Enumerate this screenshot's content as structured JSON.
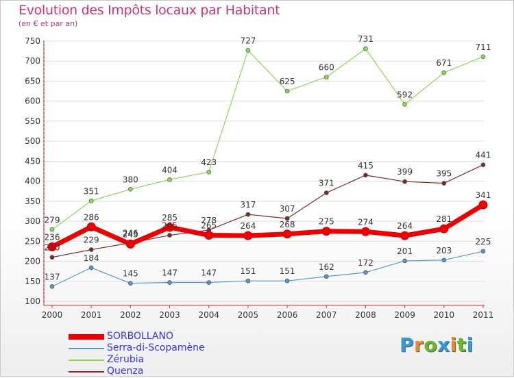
{
  "title": "Evolution des Impôts locaux par Habitant",
  "subtitle": "(en € et par an)",
  "logo": {
    "text": "Proxiti",
    "letter_colors": [
      "#3399dd",
      "#ee8822",
      "#66bb22",
      "#3399dd",
      "#ee8822",
      "#66bb22",
      "#3399dd"
    ]
  },
  "chart_data": {
    "type": "line",
    "x": [
      "2000",
      "2001",
      "2002",
      "2003",
      "2004",
      "2005",
      "2006",
      "2007",
      "2008",
      "2009",
      "2010",
      "2011"
    ],
    "ylim": [
      100,
      750
    ],
    "yticks": [
      "100",
      "150",
      "200",
      "250",
      "300",
      "350",
      "400",
      "450",
      "500",
      "550",
      "600",
      "650",
      "700",
      "750"
    ],
    "grid": "horizontal",
    "legend_position": "bottom-left",
    "series": [
      {
        "name": "Quenza",
        "color": "#7a2a2a",
        "values": [
          210,
          229,
          246,
          265,
          278,
          317,
          307,
          371,
          415,
          399,
          395,
          441
        ],
        "labels": [
          "210",
          "229",
          "246",
          "265",
          "278",
          "317",
          "307",
          "371",
          "415",
          "399",
          "395",
          "441"
        ]
      },
      {
        "name": "Zérubia",
        "color": "#88dd55",
        "values": [
          279,
          351,
          380,
          404,
          423,
          727,
          625,
          660,
          731,
          592,
          671,
          711
        ],
        "labels": [
          "279",
          "351",
          "380",
          "404",
          "423",
          "727",
          "625",
          "660",
          "731",
          "592",
          "671",
          "711"
        ]
      },
      {
        "name": "Serra-di-Scopamène",
        "color": "#5599cc",
        "values": [
          137,
          184,
          145,
          147,
          147,
          151,
          151,
          162,
          172,
          201,
          203,
          225
        ],
        "labels": [
          "137",
          "184",
          "145",
          "147",
          "147",
          "151",
          "151",
          "162",
          "172",
          "201",
          "203",
          "225"
        ]
      },
      {
        "name": "SORBOLLANO",
        "color": "#ee0000",
        "values": [
          236,
          286,
          243,
          285,
          265,
          264,
          268,
          275,
          274,
          264,
          281,
          341
        ],
        "labels": [
          "236",
          "286",
          "243",
          "285",
          "265",
          "264",
          "268",
          "275",
          "274",
          "264",
          "281",
          "341"
        ]
      }
    ],
    "legend": [
      {
        "name": "SORBOLLANO",
        "color": "#ee0000",
        "text_color": "#3333ff"
      },
      {
        "name": "Serra-di-Scopamène",
        "color": "#5599cc",
        "text_color": "#3333ff"
      },
      {
        "name": "Zérubia",
        "color": "#88dd55",
        "text_color": "#3333ff"
      },
      {
        "name": "Quenza",
        "color": "#7a2a2a",
        "text_color": "#3333ff"
      }
    ]
  }
}
